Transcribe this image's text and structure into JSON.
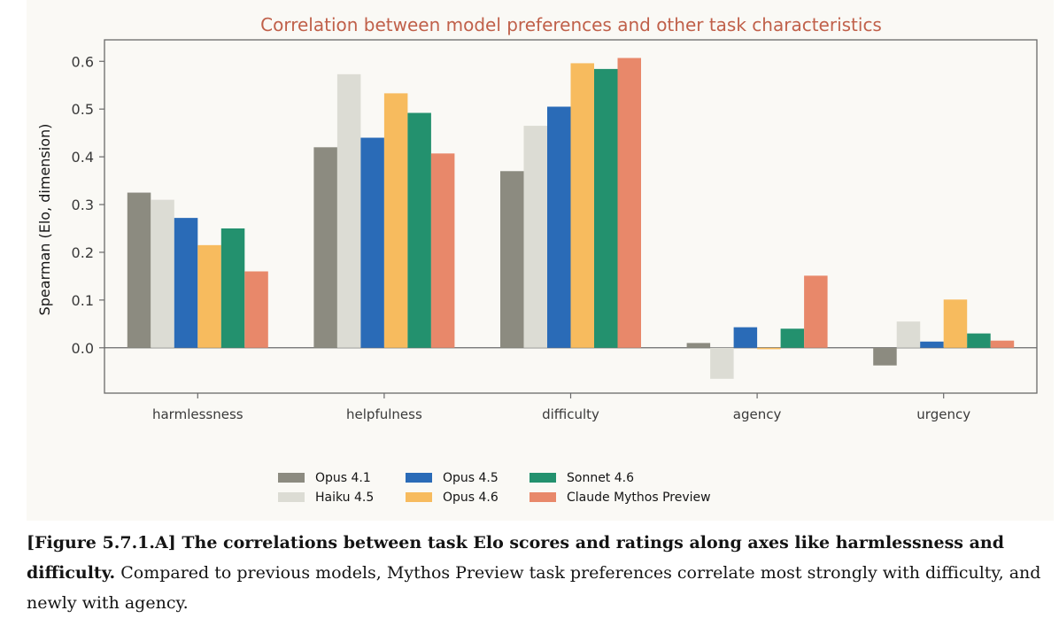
{
  "chart_data": {
    "type": "bar",
    "title": "Correlation between model preferences and other task characteristics",
    "xlabel": "",
    "ylabel": "Spearman  (Elo, dimension)",
    "ylim": [
      -0.095,
      0.645
    ],
    "yticks": [
      "0.6",
      "0.5",
      "0.4",
      "0.3",
      "0.2",
      "0.1",
      "0.0"
    ],
    "ytick_values": [
      0.6,
      0.5,
      0.4,
      0.3,
      0.2,
      0.1,
      0.0
    ],
    "categories": [
      "harmlessness",
      "helpfulness",
      "difficulty",
      "agency",
      "urgency"
    ],
    "grid": false,
    "legend_position": "bottom-center",
    "series": [
      {
        "name": "Opus 4.1",
        "color": "#8c8b80",
        "values": [
          0.325,
          0.42,
          0.37,
          0.01,
          -0.037
        ]
      },
      {
        "name": "Haiku 4.5",
        "color": "#dcdcd4",
        "values": [
          0.31,
          0.573,
          0.465,
          -0.065,
          0.055
        ]
      },
      {
        "name": "Opus 4.5",
        "color": "#2a6bb7",
        "values": [
          0.272,
          0.44,
          0.505,
          0.043,
          0.013
        ]
      },
      {
        "name": "Opus 4.6",
        "color": "#f7bb5e",
        "values": [
          0.215,
          0.533,
          0.596,
          -0.003,
          0.101
        ]
      },
      {
        "name": "Sonnet 4.6",
        "color": "#23916e",
        "values": [
          0.25,
          0.492,
          0.584,
          0.04,
          0.03
        ]
      },
      {
        "name": "Claude Mythos Preview",
        "color": "#e8886a",
        "values": [
          0.16,
          0.407,
          0.607,
          0.151,
          0.015
        ]
      }
    ]
  },
  "caption": {
    "figure_label": "[Figure 5.7.1.A]",
    "bold_text": "The correlations between task Elo scores and ratings along axes like harmlessness and difficulty.",
    "body_text": "Compared to previous models, Mythos Preview task preferences correlate most strongly with difficulty, and newly with agency."
  },
  "colors": {
    "title": "#c0604a",
    "axis": "#6a6a6a",
    "panel_background": "#faf9f5"
  }
}
